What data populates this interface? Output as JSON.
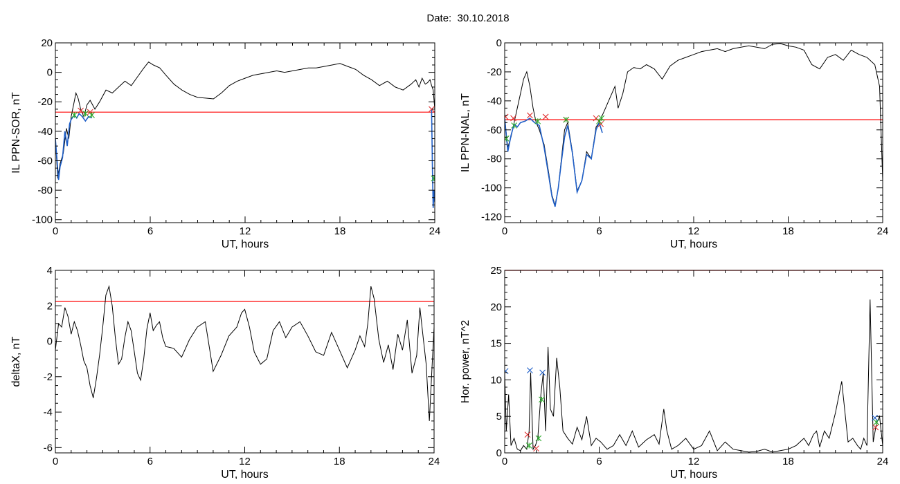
{
  "page": {
    "title": "Date:  30.10.2018"
  },
  "colors": {
    "signal": "#000000",
    "threshold": "#ff0000",
    "event": "#1f5fc8",
    "marker_red": "#e03030",
    "marker_green": "#2eaa2e",
    "marker_blue": "#1f5fc8"
  },
  "chart_data": [
    {
      "id": "il-sor",
      "type": "line",
      "xlabel": "UT, hours",
      "ylabel": "IL PPN-SOR, nT",
      "xlim": [
        0,
        24
      ],
      "ylim": [
        -102,
        20
      ],
      "xticks": [
        0,
        6,
        12,
        18,
        24
      ],
      "yticks": [
        20,
        0,
        -20,
        -40,
        -60,
        -80,
        -100
      ],
      "threshold": -27,
      "series": [
        {
          "x": [
            0,
            0.15,
            0.3,
            0.5,
            0.7,
            0.85,
            1.0,
            1.15,
            1.3,
            1.45,
            1.6,
            1.8,
            2.0,
            2.2,
            2.5,
            2.8,
            3.2,
            3.6,
            4.0,
            4.4,
            4.8,
            5.2,
            5.6,
            5.9,
            6.2,
            6.6,
            7.0,
            7.5,
            8.0,
            8.5,
            9.0,
            9.5,
            10.0,
            10.5,
            11.0,
            11.5,
            12.0,
            12.5,
            13.0,
            13.5,
            14.0,
            14.5,
            15.0,
            15.5,
            16.0,
            16.5,
            17.0,
            17.5,
            18.0,
            18.5,
            19.0,
            19.5,
            20.0,
            20.5,
            21.0,
            21.5,
            22.0,
            22.5,
            22.8,
            23.0,
            23.2,
            23.4,
            23.55,
            23.7,
            23.8,
            23.9,
            24.0
          ],
          "y": [
            -45,
            -72,
            -62,
            -55,
            -38,
            -45,
            -30,
            -22,
            -14,
            -18,
            -25,
            -30,
            -22,
            -19,
            -25,
            -20,
            -12,
            -14,
            -10,
            -6,
            -9,
            -3,
            3,
            7,
            5,
            3,
            -2,
            -8,
            -12,
            -15,
            -17,
            -17.5,
            -18,
            -14,
            -9,
            -6,
            -4,
            -2,
            -1,
            0,
            1,
            0,
            1,
            2,
            3,
            3,
            4,
            5,
            6,
            4,
            2,
            -2,
            -5,
            -9,
            -6,
            -10,
            -12,
            -8,
            -5,
            -10,
            -4,
            -8,
            -7,
            -5,
            -9,
            -12,
            -25
          ]
        },
        {
          "x": [
            0,
            0.2,
            0.3,
            0.45,
            0.6,
            0.75,
            0.9,
            1.0,
            1.2,
            1.35,
            1.5,
            1.7,
            1.9,
            2.1,
            2.3
          ],
          "y": [
            -45,
            -73,
            -64,
            -58,
            -40,
            -50,
            -35,
            -32,
            -29,
            -31,
            -28,
            -30,
            -33,
            -30,
            -31
          ]
        },
        {
          "x": [
            23.8,
            23.85,
            23.9,
            23.95,
            24.0
          ],
          "y": [
            -25,
            -65,
            -92,
            -80,
            -88
          ]
        }
      ],
      "markers_red": [
        [
          1.6,
          -26
        ],
        [
          2.2,
          -27
        ],
        [
          23.8,
          -25
        ]
      ],
      "markers_green": [
        [
          1.2,
          -29
        ],
        [
          1.9,
          -28
        ],
        [
          2.3,
          -29
        ],
        [
          23.95,
          -72
        ]
      ]
    },
    {
      "id": "il-nal",
      "type": "line",
      "xlabel": "UT, hours",
      "ylabel": "IL PPN-NAL, nT",
      "xlim": [
        0,
        24
      ],
      "ylim": [
        -124,
        0
      ],
      "xticks": [
        0,
        6,
        12,
        18,
        24
      ],
      "yticks": [
        0,
        -20,
        -40,
        -60,
        -80,
        -100,
        -120
      ],
      "threshold": -53,
      "series": [
        {
          "x": [
            0,
            0.2,
            0.4,
            0.6,
            0.8,
            1.0,
            1.2,
            1.4,
            1.6,
            1.8,
            2.0,
            2.2,
            2.5,
            2.8,
            3.0,
            3.2,
            3.4,
            3.6,
            3.8,
            4.0,
            4.3,
            4.6,
            4.9,
            5.2,
            5.5,
            5.8,
            6.0,
            6.2,
            6.4,
            6.6,
            6.8,
            7.0,
            7.2,
            7.5,
            7.8,
            8.2,
            8.6,
            9.0,
            9.5,
            10.0,
            10.5,
            11.0,
            11.5,
            12.0,
            12.5,
            13.0,
            13.5,
            14.0,
            14.5,
            15.0,
            15.5,
            16.0,
            16.5,
            17.0,
            17.5,
            18.0,
            18.5,
            19.0,
            19.5,
            20.0,
            20.5,
            21.0,
            21.5,
            22.0,
            22.5,
            23.0,
            23.5,
            23.8,
            24.0
          ],
          "y": [
            -52,
            -72,
            -65,
            -55,
            -45,
            -35,
            -25,
            -20,
            -30,
            -45,
            -55,
            -60,
            -70,
            -90,
            -105,
            -112,
            -100,
            -80,
            -60,
            -55,
            -75,
            -102,
            -95,
            -75,
            -80,
            -58,
            -55,
            -50,
            -45,
            -40,
            -35,
            -30,
            -45,
            -35,
            -20,
            -17,
            -18,
            -15,
            -18,
            -25,
            -16,
            -12,
            -10,
            -8,
            -6,
            -5,
            -4,
            -6,
            -4,
            -3,
            -2,
            -3,
            -4,
            -1,
            -0.5,
            -2,
            -3,
            -5,
            -15,
            -18,
            -10,
            -8,
            -12,
            -5,
            -8,
            -10,
            -15,
            -30,
            -95
          ]
        },
        {
          "x": [
            0,
            0.2,
            0.4,
            0.6,
            0.8,
            1.0,
            1.3,
            1.6,
            1.9,
            2.2,
            2.5,
            2.8,
            3.0,
            3.2,
            3.4,
            3.6,
            3.8,
            4.0,
            4.3,
            4.6,
            4.9,
            5.2,
            5.5,
            5.8,
            6.0,
            6.2
          ],
          "y": [
            -52,
            -75,
            -64,
            -56,
            -58,
            -55,
            -54,
            -52,
            -55,
            -57,
            -72,
            -92,
            -106,
            -113,
            -100,
            -82,
            -65,
            -57,
            -76,
            -103,
            -95,
            -77,
            -80,
            -60,
            -55,
            -62
          ]
        }
      ],
      "markers_red": [
        [
          0.05,
          -51
        ],
        [
          0.55,
          -52
        ],
        [
          1.6,
          -50
        ],
        [
          2.6,
          -51
        ],
        [
          3.9,
          -53
        ],
        [
          5.8,
          -52
        ],
        [
          6.1,
          -56
        ]
      ],
      "markers_green": [
        [
          0.1,
          -66
        ],
        [
          0.6,
          -57
        ],
        [
          2.1,
          -54
        ],
        [
          3.9,
          -53
        ],
        [
          6.0,
          -54
        ],
        [
          6.15,
          -52
        ]
      ]
    },
    {
      "id": "delta-x",
      "type": "line",
      "xlabel": "UT, hours",
      "ylabel": "deltaX, nT",
      "xlim": [
        0,
        24
      ],
      "ylim": [
        -6.3,
        4
      ],
      "xticks": [
        0,
        6,
        12,
        18,
        24
      ],
      "yticks": [
        4,
        2,
        0,
        -2,
        -4,
        -6
      ],
      "threshold": 2.25,
      "series": [
        {
          "x": [
            0,
            0.2,
            0.4,
            0.6,
            0.8,
            1.0,
            1.2,
            1.4,
            1.6,
            1.8,
            2.0,
            2.2,
            2.4,
            2.6,
            2.8,
            3.0,
            3.2,
            3.4,
            3.6,
            3.8,
            4.0,
            4.2,
            4.4,
            4.6,
            4.8,
            5.0,
            5.2,
            5.4,
            5.6,
            5.8,
            6.0,
            6.2,
            6.4,
            6.6,
            6.8,
            7.0,
            7.5,
            8.0,
            8.5,
            9.0,
            9.5,
            10.0,
            10.5,
            11.0,
            11.5,
            11.8,
            12.0,
            12.3,
            12.6,
            13.0,
            13.4,
            13.8,
            14.2,
            14.6,
            15.0,
            15.5,
            16.0,
            16.5,
            17.0,
            17.5,
            18.0,
            18.5,
            19.0,
            19.3,
            19.6,
            19.8,
            20.0,
            20.2,
            20.5,
            20.8,
            21.1,
            21.4,
            21.7,
            22.0,
            22.3,
            22.6,
            22.9,
            23.1,
            23.3,
            23.5,
            23.7,
            23.85,
            24.0
          ],
          "y": [
            -0.5,
            1.0,
            0.8,
            1.9,
            1.4,
            0.4,
            1.1,
            0.6,
            -0.2,
            -1.1,
            -1.5,
            -2.5,
            -3.2,
            -2.1,
            -0.8,
            0.8,
            2.6,
            3.1,
            2.0,
            0.2,
            -1.3,
            -1.0,
            0.2,
            1.1,
            0.6,
            -0.6,
            -1.8,
            -2.2,
            -1.0,
            0.7,
            1.6,
            0.6,
            0.9,
            1.1,
            0.2,
            -0.3,
            -0.4,
            -0.9,
            0.1,
            0.8,
            1.1,
            -1.7,
            -0.8,
            0.3,
            0.8,
            1.6,
            1.8,
            0.8,
            -0.6,
            -1.3,
            -1.0,
            0.6,
            1.1,
            0.2,
            0.8,
            1.1,
            0.3,
            -0.6,
            -0.8,
            0.5,
            -0.5,
            -1.5,
            -0.5,
            0.3,
            -0.3,
            1.0,
            3.1,
            2.4,
            0.1,
            -1.2,
            -0.2,
            -1.6,
            0.4,
            -0.5,
            1.2,
            -1.8,
            -0.8,
            1.9,
            0.3,
            -1.3,
            -4.5,
            -1.8,
            0.8
          ]
        }
      ]
    },
    {
      "id": "hor-power",
      "type": "line",
      "xlabel": "UT, hours",
      "ylabel": "Hor. power, nT^2",
      "xlim": [
        0,
        24
      ],
      "ylim": [
        0,
        25
      ],
      "xticks": [
        0,
        6,
        12,
        18,
        24
      ],
      "yticks": [
        0,
        5,
        10,
        15,
        20,
        25
      ],
      "threshold": 25,
      "series": [
        {
          "x": [
            0,
            0.1,
            0.25,
            0.4,
            0.6,
            0.8,
            1.0,
            1.2,
            1.4,
            1.55,
            1.65,
            1.8,
            1.95,
            2.1,
            2.3,
            2.45,
            2.6,
            2.75,
            2.9,
            3.1,
            3.3,
            3.5,
            3.7,
            4.0,
            4.3,
            4.6,
            4.9,
            5.2,
            5.5,
            5.8,
            6.1,
            6.5,
            6.9,
            7.3,
            7.7,
            8.1,
            8.5,
            9.0,
            9.5,
            9.8,
            10.1,
            10.3,
            10.6,
            11.0,
            11.5,
            12.0,
            12.5,
            13.0,
            13.5,
            14.0,
            14.5,
            15.0,
            15.5,
            16.0,
            16.5,
            17.0,
            17.5,
            18.0,
            18.5,
            19.0,
            19.3,
            19.6,
            19.8,
            20.0,
            20.3,
            20.6,
            21.0,
            21.4,
            21.8,
            22.1,
            22.4,
            22.6,
            22.8,
            23.0,
            23.2,
            23.4,
            23.6,
            23.8,
            24.0
          ],
          "y": [
            11,
            3,
            8,
            1,
            2,
            0.5,
            0.3,
            1,
            0.5,
            3,
            11,
            0.5,
            1,
            2,
            8,
            11,
            3,
            14.5,
            6,
            5,
            13,
            9,
            3,
            2,
            1.2,
            3.5,
            1.8,
            5,
            1,
            2,
            1.5,
            0.5,
            1,
            2.5,
            1,
            3,
            0.8,
            1.8,
            2.5,
            1.2,
            6,
            3,
            0.5,
            1,
            2,
            0.5,
            1,
            3,
            0.3,
            1.5,
            0.5,
            0.3,
            0.1,
            0.2,
            0.5,
            0.1,
            0.3,
            0.5,
            1,
            2,
            1,
            2.5,
            3,
            0.8,
            3,
            2,
            5.5,
            9.8,
            1.5,
            2,
            1,
            0.5,
            2,
            1,
            21,
            1.5,
            4,
            5,
            1
          ]
        }
      ],
      "markers_red": [
        [
          1.45,
          2.5
        ],
        [
          2.0,
          0.6
        ],
        [
          23.55,
          3.5
        ]
      ],
      "markers_green": [
        [
          1.55,
          1.0
        ],
        [
          2.15,
          2.0
        ],
        [
          2.35,
          7.3
        ],
        [
          23.6,
          4.2
        ]
      ],
      "markers_blue": [
        [
          1.6,
          11.3
        ],
        [
          2.4,
          11.0
        ],
        [
          23.5,
          4.8
        ],
        [
          0.05,
          11.2
        ]
      ]
    }
  ]
}
